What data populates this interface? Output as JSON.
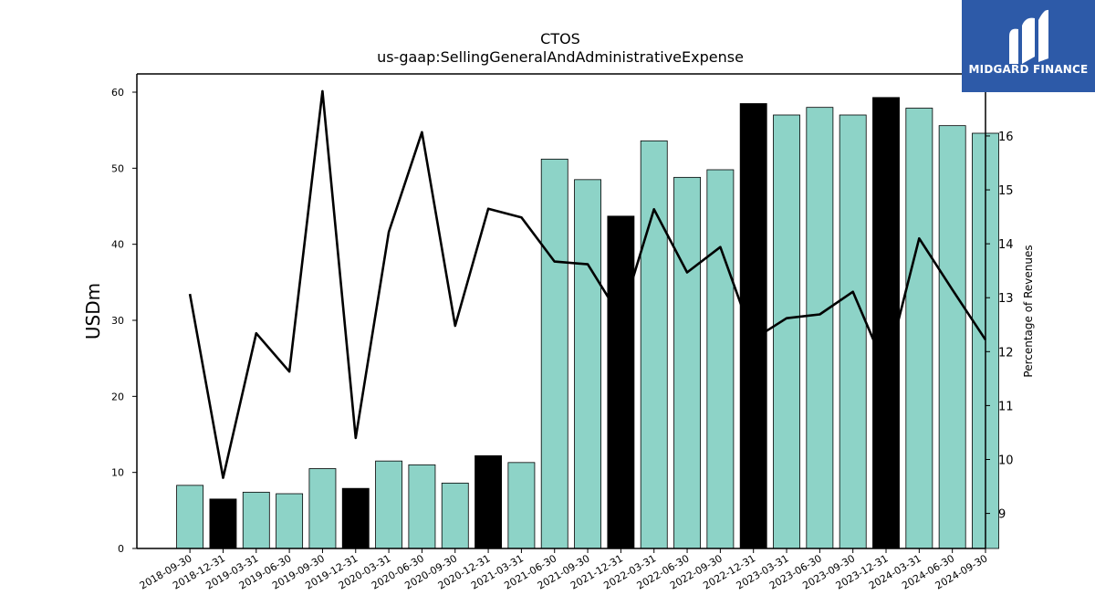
{
  "chart_data": {
    "type": "bar",
    "title": "CTOS",
    "subtitle": "us-gaap:SellingGeneralAndAdministrativeExpense",
    "ylabel": "USDm",
    "y2label": "Percentage of Revenues",
    "ylim": [
      0,
      62.4
    ],
    "y2lim": [
      8.35,
      17.15
    ],
    "yticks": [
      0,
      10,
      20,
      30,
      40,
      50,
      60
    ],
    "y2ticks": [
      9,
      10,
      11,
      12,
      13,
      14,
      15,
      16
    ],
    "categories": [
      "2018-09-30",
      "2018-12-31",
      "2019-03-31",
      "2019-06-30",
      "2019-09-30",
      "2019-12-31",
      "2020-03-31",
      "2020-06-30",
      "2020-09-30",
      "2020-12-31",
      "2021-03-31",
      "2021-06-30",
      "2021-09-30",
      "2021-12-31",
      "2022-03-31",
      "2022-06-30",
      "2022-09-30",
      "2022-12-31",
      "2023-03-31",
      "2023-06-30",
      "2023-09-30",
      "2023-12-31",
      "2024-03-31",
      "2024-06-30",
      "2024-09-30"
    ],
    "series": [
      {
        "type": "bar",
        "values": [
          8.3,
          6.5,
          7.4,
          7.2,
          10.5,
          7.9,
          11.5,
          11.0,
          8.6,
          12.2,
          11.3,
          51.2,
          48.5,
          43.7,
          53.6,
          48.8,
          49.8,
          58.5,
          57.0,
          58.0,
          57.0,
          59.3,
          57.9,
          55.6,
          54.6
        ],
        "highlight": [
          false,
          true,
          false,
          false,
          false,
          true,
          false,
          false,
          false,
          true,
          false,
          false,
          false,
          true,
          false,
          false,
          false,
          true,
          false,
          false,
          false,
          true,
          false,
          false,
          false
        ]
      },
      {
        "type": "line",
        "axis": "right",
        "values": [
          13.07,
          9.66,
          12.34,
          11.63,
          16.83,
          10.4,
          14.22,
          16.07,
          12.48,
          14.65,
          14.49,
          13.67,
          13.62,
          12.63,
          14.64,
          13.47,
          13.94,
          12.23,
          12.62,
          12.69,
          13.11,
          11.67,
          14.1,
          13.15,
          12.22
        ]
      }
    ],
    "colors": {
      "bar": "#8dd3c7",
      "highlight_bar": "#000000",
      "line": "#000000"
    }
  },
  "logo": {
    "text": "MIDGARD FINANCE",
    "background": "#2d5aa8"
  }
}
